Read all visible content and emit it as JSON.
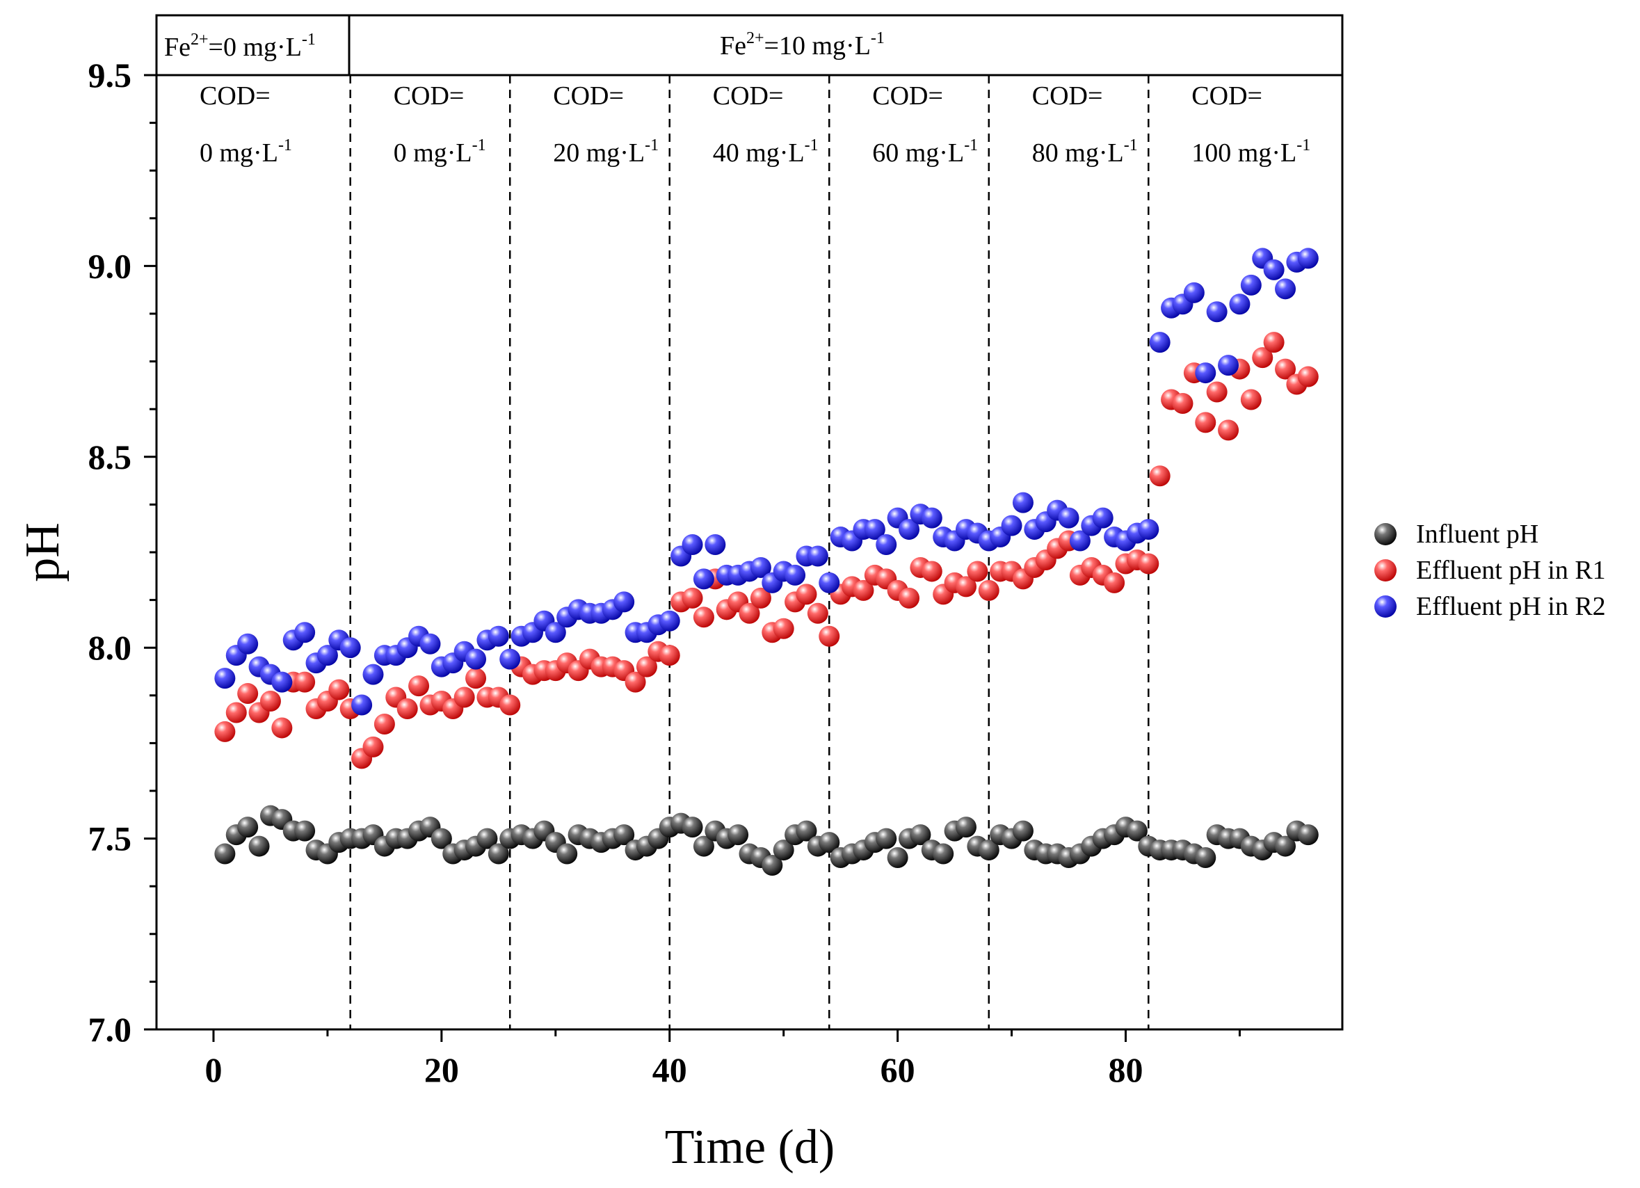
{
  "chart_data": {
    "type": "scatter",
    "xlabel": "Time (d)",
    "ylabel": "pH",
    "xlim": [
      -5,
      99
    ],
    "ylim": [
      7.0,
      9.5
    ],
    "xticks": [
      "0",
      "20",
      "40",
      "60",
      "80"
    ],
    "yticks": [
      "7.0",
      "7.5",
      "8.0",
      "8.5",
      "9.0",
      "9.5"
    ],
    "legend_position": "right",
    "stage_boundaries": [
      12,
      26,
      40,
      54,
      68,
      82
    ],
    "header": {
      "phase1": {
        "prefix": "Fe",
        "sup1": "2+",
        "mid": "=0 mg·L",
        "sup2": "-1"
      },
      "phase2": {
        "prefix": "Fe",
        "sup1": "2+",
        "mid": "=10 mg·L",
        "sup2": "-1"
      }
    },
    "stages": [
      {
        "line1": "COD=",
        "line2": "0 mg·L",
        "sup": "-1"
      },
      {
        "line1": "COD=",
        "line2": "0 mg·L",
        "sup": "-1"
      },
      {
        "line1": "COD=",
        "line2": "20 mg·L",
        "sup": "-1"
      },
      {
        "line1": "COD=",
        "line2": "40 mg·L",
        "sup": "-1"
      },
      {
        "line1": "COD=",
        "line2": "60 mg·L",
        "sup": "-1"
      },
      {
        "line1": "COD=",
        "line2": "80 mg·L",
        "sup": "-1"
      },
      {
        "line1": "COD=",
        "line2": "100 mg·L",
        "sup": "-1"
      }
    ],
    "series": [
      {
        "name": "Influent pH",
        "color": "#1a1a1a",
        "x": [
          1,
          2,
          3,
          4,
          5,
          6,
          7,
          8,
          9,
          10,
          11,
          12,
          13,
          14,
          15,
          16,
          17,
          18,
          19,
          20,
          21,
          22,
          23,
          24,
          25,
          26,
          27,
          28,
          29,
          30,
          31,
          32,
          33,
          34,
          35,
          36,
          37,
          38,
          39,
          40,
          41,
          42,
          43,
          44,
          45,
          46,
          47,
          48,
          49,
          50,
          51,
          52,
          53,
          54,
          55,
          56,
          57,
          58,
          59,
          60,
          61,
          62,
          63,
          64,
          65,
          66,
          67,
          68,
          69,
          70,
          71,
          72,
          73,
          74,
          75,
          76,
          77,
          78,
          79,
          80,
          81,
          82,
          83,
          84,
          85,
          86,
          87,
          88,
          89,
          90,
          91,
          92,
          93,
          94,
          95,
          96
        ],
        "values": [
          7.46,
          7.51,
          7.53,
          7.48,
          7.56,
          7.55,
          7.52,
          7.52,
          7.47,
          7.46,
          7.49,
          7.5,
          7.5,
          7.51,
          7.48,
          7.5,
          7.5,
          7.52,
          7.53,
          7.5,
          7.46,
          7.47,
          7.48,
          7.5,
          7.46,
          7.5,
          7.51,
          7.5,
          7.52,
          7.49,
          7.46,
          7.51,
          7.5,
          7.49,
          7.5,
          7.51,
          7.47,
          7.48,
          7.5,
          7.53,
          7.54,
          7.53,
          7.48,
          7.52,
          7.5,
          7.51,
          7.46,
          7.45,
          7.43,
          7.47,
          7.51,
          7.52,
          7.48,
          7.49,
          7.45,
          7.46,
          7.47,
          7.49,
          7.5,
          7.45,
          7.5,
          7.51,
          7.47,
          7.46,
          7.52,
          7.53,
          7.48,
          7.47,
          7.51,
          7.5,
          7.52,
          7.47,
          7.46,
          7.46,
          7.45,
          7.46,
          7.48,
          7.5,
          7.51,
          7.53,
          7.52,
          7.48,
          7.47,
          7.47,
          7.47,
          7.46,
          7.45,
          7.51,
          7.5,
          7.5,
          7.48,
          7.47,
          7.49,
          7.48,
          7.52,
          7.51
        ]
      },
      {
        "name": "Effluent pH in R1",
        "color": "#ee1c1c",
        "x": [
          1,
          2,
          3,
          4,
          5,
          6,
          7,
          8,
          9,
          10,
          11,
          12,
          13,
          14,
          15,
          16,
          17,
          18,
          19,
          20,
          21,
          22,
          23,
          24,
          25,
          26,
          27,
          28,
          29,
          30,
          31,
          32,
          33,
          34,
          35,
          36,
          37,
          38,
          39,
          40,
          41,
          42,
          43,
          44,
          45,
          46,
          47,
          48,
          49,
          50,
          51,
          52,
          53,
          54,
          55,
          56,
          57,
          58,
          59,
          60,
          61,
          62,
          63,
          64,
          65,
          66,
          67,
          68,
          69,
          70,
          71,
          72,
          73,
          74,
          75,
          76,
          77,
          78,
          79,
          80,
          81,
          82,
          83,
          84,
          85,
          86,
          87,
          88,
          89,
          90,
          91,
          92,
          93,
          94,
          95,
          96
        ],
        "values": [
          7.78,
          7.83,
          7.88,
          7.83,
          7.86,
          7.79,
          7.91,
          7.91,
          7.84,
          7.86,
          7.89,
          7.84,
          7.71,
          7.74,
          7.8,
          7.87,
          7.84,
          7.9,
          7.85,
          7.86,
          7.84,
          7.87,
          7.92,
          7.87,
          7.87,
          7.85,
          7.95,
          7.93,
          7.94,
          7.94,
          7.96,
          7.94,
          7.97,
          7.95,
          7.95,
          7.94,
          7.91,
          7.95,
          7.99,
          7.98,
          8.12,
          8.13,
          8.08,
          8.18,
          8.1,
          8.12,
          8.09,
          8.13,
          8.04,
          8.05,
          8.12,
          8.14,
          8.09,
          8.03,
          8.14,
          8.16,
          8.15,
          8.19,
          8.18,
          8.15,
          8.13,
          8.21,
          8.2,
          8.14,
          8.17,
          8.16,
          8.2,
          8.15,
          8.2,
          8.2,
          8.18,
          8.21,
          8.23,
          8.26,
          8.28,
          8.19,
          8.21,
          8.19,
          8.17,
          8.22,
          8.23,
          8.22,
          8.45,
          8.65,
          8.64,
          8.72,
          8.59,
          8.67,
          8.57,
          8.73,
          8.65,
          8.76,
          8.8,
          8.73,
          8.69,
          8.71
        ]
      },
      {
        "name": "Effluent pH in R2",
        "color": "#2222dd",
        "x": [
          1,
          2,
          3,
          4,
          5,
          6,
          7,
          8,
          9,
          10,
          11,
          12,
          13,
          14,
          15,
          16,
          17,
          18,
          19,
          20,
          21,
          22,
          23,
          24,
          25,
          26,
          27,
          28,
          29,
          30,
          31,
          32,
          33,
          34,
          35,
          36,
          37,
          38,
          39,
          40,
          41,
          42,
          43,
          44,
          45,
          46,
          47,
          48,
          49,
          50,
          51,
          52,
          53,
          54,
          55,
          56,
          57,
          58,
          59,
          60,
          61,
          62,
          63,
          64,
          65,
          66,
          67,
          68,
          69,
          70,
          71,
          72,
          73,
          74,
          75,
          76,
          77,
          78,
          79,
          80,
          81,
          82,
          83,
          84,
          85,
          86,
          87,
          88,
          89,
          90,
          91,
          92,
          93,
          94,
          95,
          96
        ],
        "values": [
          7.92,
          7.98,
          8.01,
          7.95,
          7.93,
          7.91,
          8.02,
          8.04,
          7.96,
          7.98,
          8.02,
          8.0,
          7.85,
          7.93,
          7.98,
          7.98,
          8.0,
          8.03,
          8.01,
          7.95,
          7.96,
          7.99,
          7.97,
          8.02,
          8.03,
          7.97,
          8.03,
          8.04,
          8.07,
          8.04,
          8.08,
          8.1,
          8.09,
          8.09,
          8.1,
          8.12,
          8.04,
          8.04,
          8.06,
          8.07,
          8.24,
          8.27,
          8.18,
          8.27,
          8.19,
          8.19,
          8.2,
          8.21,
          8.17,
          8.2,
          8.19,
          8.24,
          8.24,
          8.17,
          8.29,
          8.28,
          8.31,
          8.31,
          8.27,
          8.34,
          8.31,
          8.35,
          8.34,
          8.29,
          8.28,
          8.31,
          8.3,
          8.28,
          8.29,
          8.32,
          8.38,
          8.31,
          8.33,
          8.36,
          8.34,
          8.28,
          8.32,
          8.34,
          8.29,
          8.28,
          8.3,
          8.31,
          8.8,
          8.89,
          8.9,
          8.93,
          8.72,
          8.88,
          8.74,
          8.9,
          8.95,
          9.02,
          8.99,
          8.94,
          9.01,
          9.02
        ]
      }
    ]
  }
}
